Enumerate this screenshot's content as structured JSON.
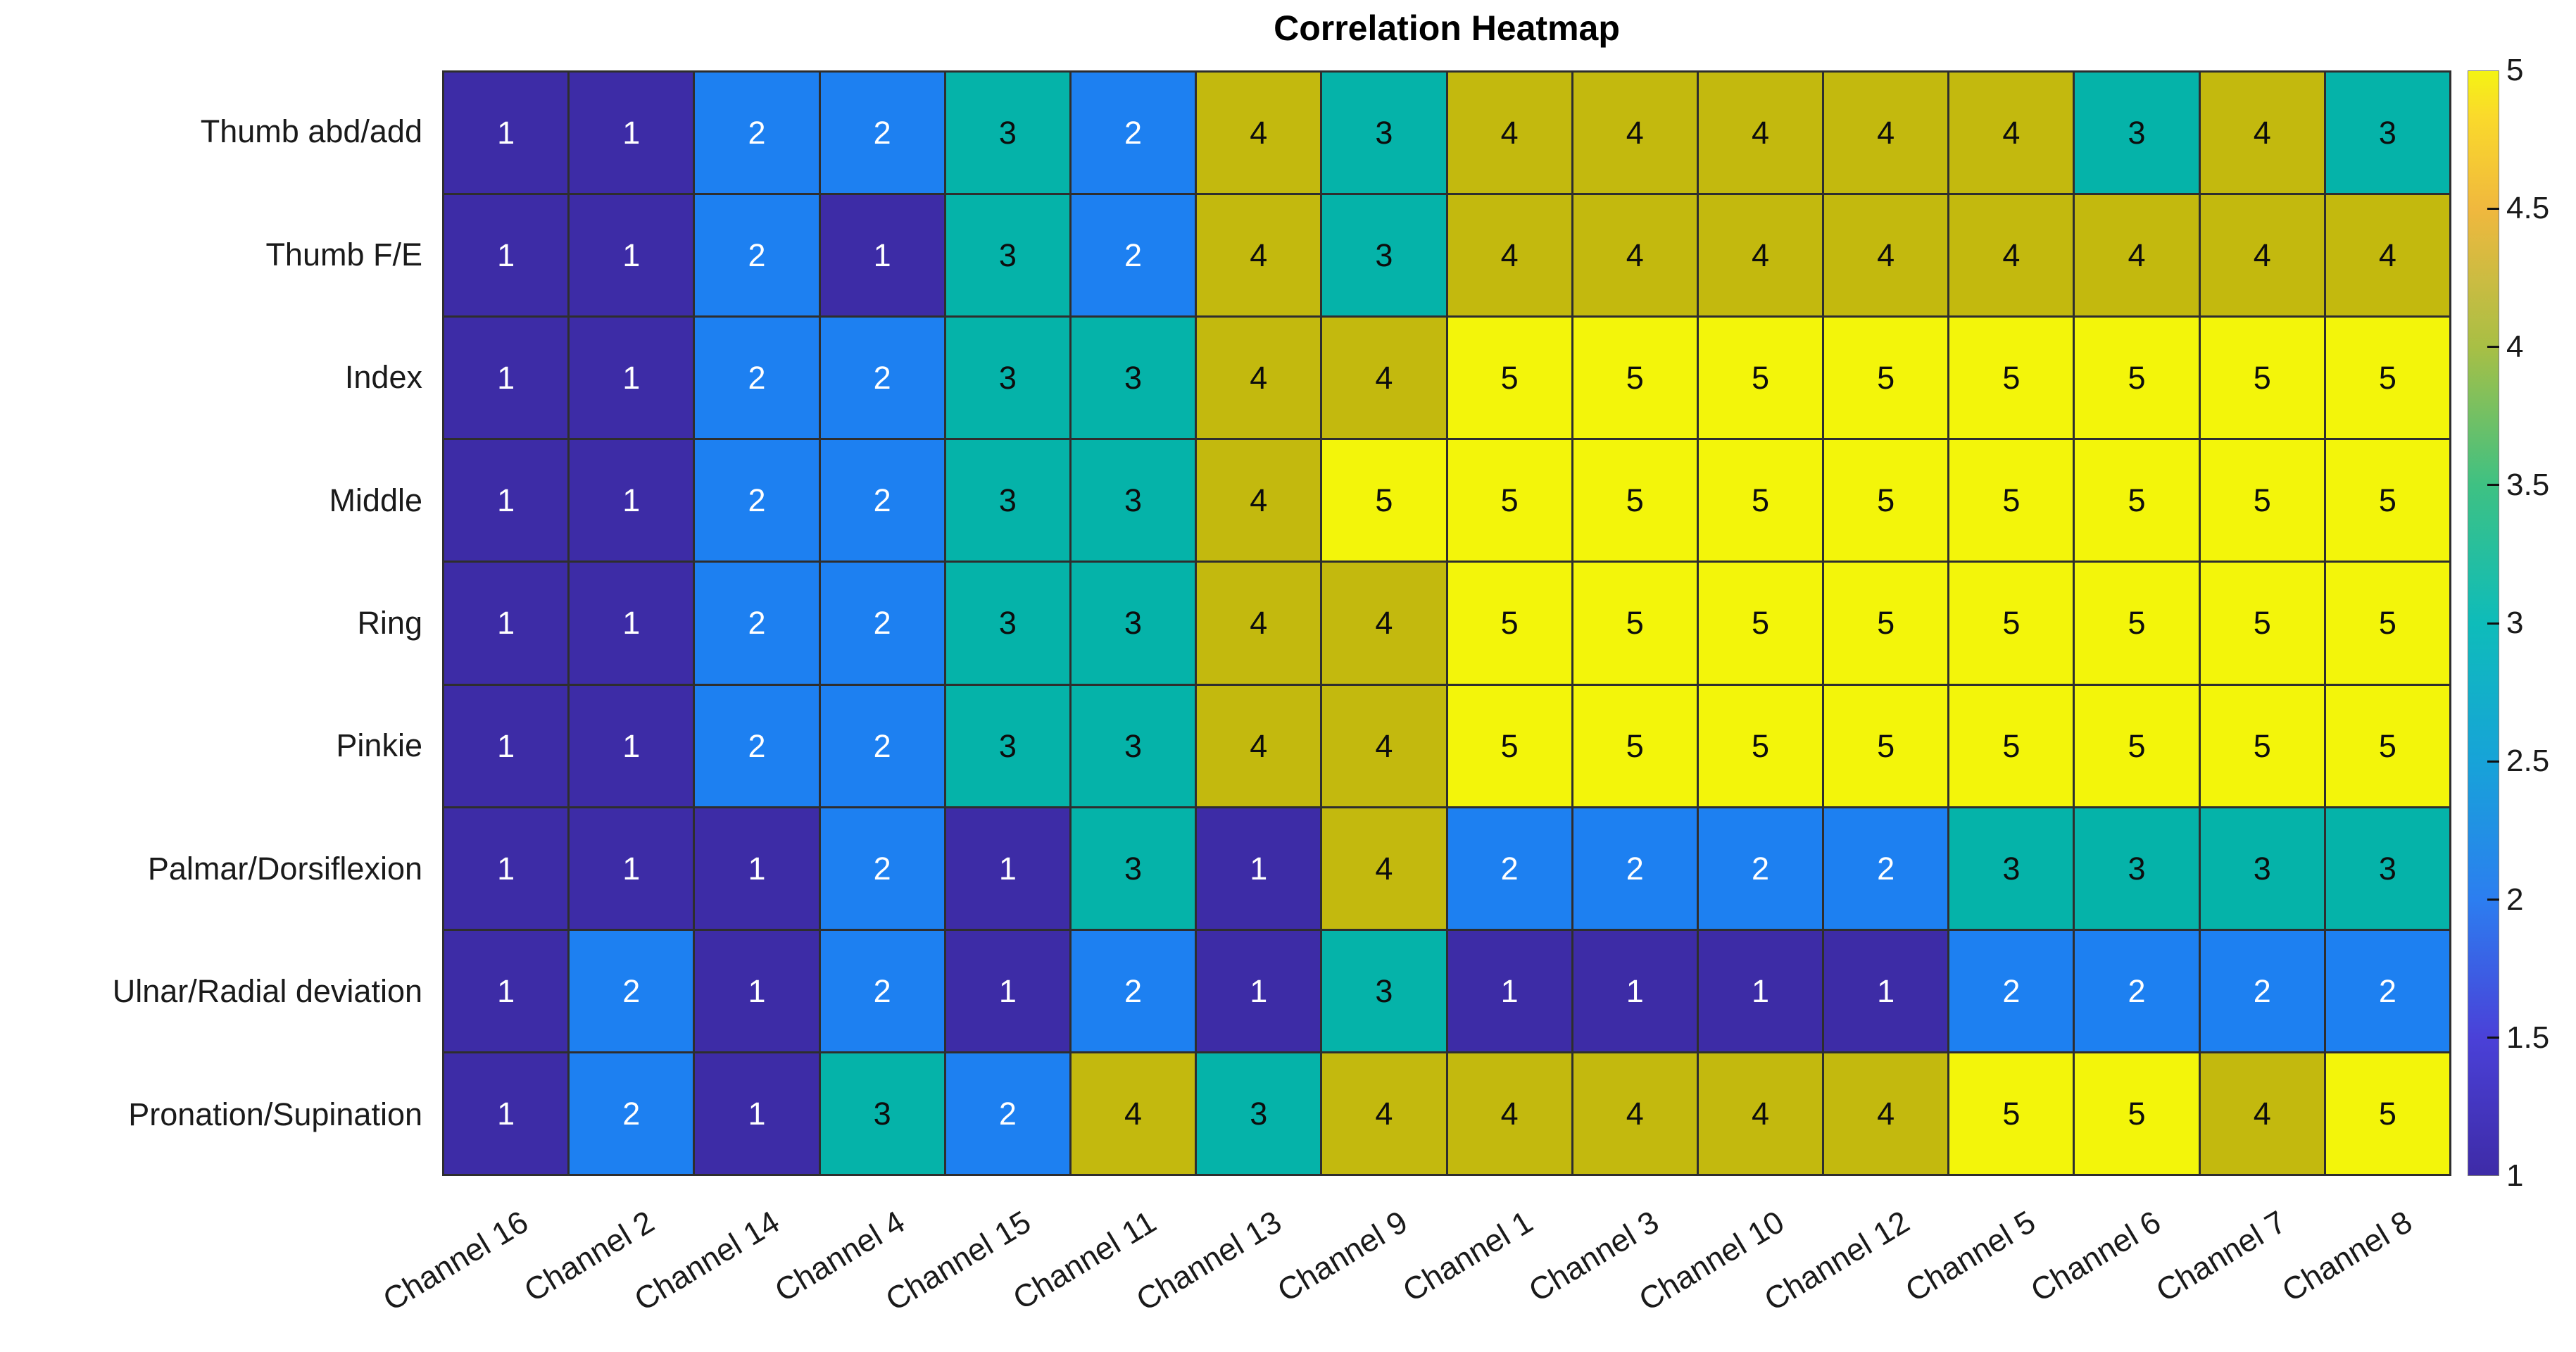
{
  "chart_data": {
    "type": "heatmap",
    "title": "Correlation Heatmap",
    "rows": [
      "Thumb abd/add",
      "Thumb F/E",
      "Index",
      "Middle",
      "Ring",
      "Pinkie",
      "Palmar/Dorsiflexion",
      "Ulnar/Radial deviation",
      "Pronation/Supination"
    ],
    "columns": [
      "Channel 16",
      "Channel 2",
      "Channel 14",
      "Channel 4",
      "Channel 15",
      "Channel 11",
      "Channel 13",
      "Channel 9",
      "Channel 1",
      "Channel 3",
      "Channel 10",
      "Channel 12",
      "Channel 5",
      "Channel 6",
      "Channel 7",
      "Channel 8"
    ],
    "values": [
      [
        1,
        1,
        2,
        2,
        3,
        2,
        4,
        3,
        4,
        4,
        4,
        4,
        4,
        3,
        4,
        3
      ],
      [
        1,
        1,
        2,
        1,
        3,
        2,
        4,
        3,
        4,
        4,
        4,
        4,
        4,
        4,
        4,
        4
      ],
      [
        1,
        1,
        2,
        2,
        3,
        3,
        4,
        4,
        5,
        5,
        5,
        5,
        5,
        5,
        5,
        5
      ],
      [
        1,
        1,
        2,
        2,
        3,
        3,
        4,
        5,
        5,
        5,
        5,
        5,
        5,
        5,
        5,
        5
      ],
      [
        1,
        1,
        2,
        2,
        3,
        3,
        4,
        4,
        5,
        5,
        5,
        5,
        5,
        5,
        5,
        5
      ],
      [
        1,
        1,
        2,
        2,
        3,
        3,
        4,
        4,
        5,
        5,
        5,
        5,
        5,
        5,
        5,
        5
      ],
      [
        1,
        1,
        1,
        2,
        1,
        3,
        1,
        4,
        2,
        2,
        2,
        2,
        3,
        3,
        3,
        3
      ],
      [
        1,
        2,
        1,
        2,
        1,
        2,
        1,
        3,
        1,
        1,
        1,
        1,
        2,
        2,
        2,
        2
      ],
      [
        1,
        2,
        1,
        3,
        2,
        4,
        3,
        4,
        4,
        4,
        4,
        4,
        5,
        5,
        4,
        5
      ]
    ],
    "value_colors": {
      "1": "#3d2ca6",
      "2": "#1d80f1",
      "3": "#05b3a9",
      "4": "#c3b90e",
      "5": "#f3f50a"
    },
    "value_text_colors": {
      "1": "#ffffff",
      "2": "#ffffff",
      "3": "#0d0d0d",
      "4": "#0d0d0d",
      "5": "#0d0d0d"
    },
    "colorbar": {
      "min": 1,
      "max": 5,
      "tick_step": 0.5,
      "tick_labels": [
        "1",
        "1.5",
        "2",
        "2.5",
        "3",
        "3.5",
        "4",
        "4.5",
        "5"
      ],
      "gradient_bottom_to_top": [
        {
          "pos": 0,
          "color": "#3e2ba7"
        },
        {
          "pos": 0.125,
          "color": "#4a41d8"
        },
        {
          "pos": 0.25,
          "color": "#2c7ef0"
        },
        {
          "pos": 0.375,
          "color": "#17a3d8"
        },
        {
          "pos": 0.5,
          "color": "#0ebcba"
        },
        {
          "pos": 0.625,
          "color": "#3ec183"
        },
        {
          "pos": 0.75,
          "color": "#a8bf45"
        },
        {
          "pos": 0.875,
          "color": "#f0b83e"
        },
        {
          "pos": 0.96,
          "color": "#fada2b"
        },
        {
          "pos": 1,
          "color": "#f4f313"
        }
      ],
      "position": "right"
    },
    "grid_line_color": "#2e2e2e",
    "x_label_rotation_deg": -31,
    "ylim": [
      1,
      5
    ]
  }
}
